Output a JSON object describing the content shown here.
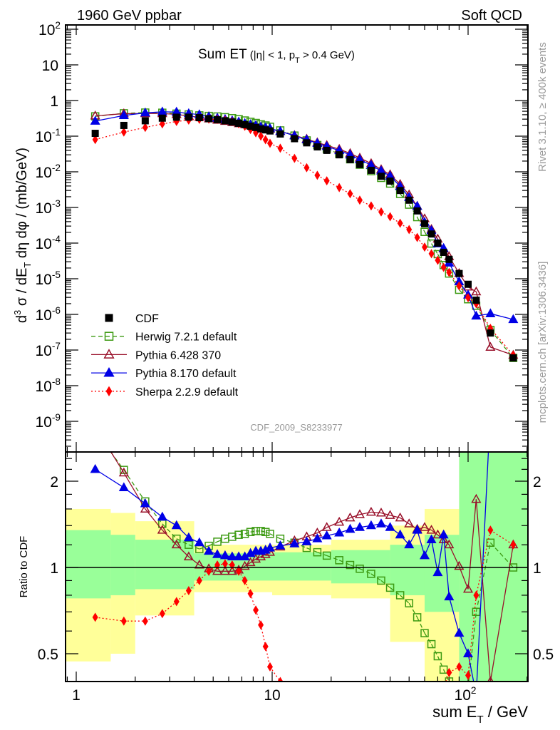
{
  "header": {
    "left": "1960 GeV ppbar",
    "right": "Soft QCD"
  },
  "side": {
    "rivet": "Rivet 3.1.10, ≥ 400k events",
    "mcplots": "mcplots.cern.ch [arXiv:1306.3436]"
  },
  "analysis_id": "CDF_2009_S8233977",
  "chart_data": [
    {
      "type": "scatter",
      "panel": "main",
      "title_parts": [
        "Sum ET",
        " (|η| < 1, p",
        "T",
        " > 0.4 GeV)"
      ],
      "ylabel_parts": [
        "d",
        "3",
        " σ / dE",
        "T",
        " dη dφ / (mb/GeV)"
      ],
      "yscale": "log",
      "ylim": [
        1.3e-10,
        130
      ],
      "ytick_labels": [
        {
          "v": 100,
          "base": "10",
          "exp": "2"
        },
        {
          "v": 10,
          "base": "10",
          "exp": ""
        },
        {
          "v": 1,
          "base": "1",
          "exp": ""
        },
        {
          "v": 0.1,
          "base": "10",
          "exp": "-1"
        },
        {
          "v": 0.01,
          "base": "10",
          "exp": "-2"
        },
        {
          "v": 0.001,
          "base": "10",
          "exp": "-3"
        },
        {
          "v": 0.0001,
          "base": "10",
          "exp": "-4"
        },
        {
          "v": 1e-05,
          "base": "10",
          "exp": "-5"
        },
        {
          "v": 1e-06,
          "base": "10",
          "exp": "-6"
        },
        {
          "v": 1e-07,
          "base": "10",
          "exp": "-7"
        },
        {
          "v": 1e-08,
          "base": "10",
          "exp": "-8"
        },
        {
          "v": 1e-09,
          "base": "10",
          "exp": "-9"
        }
      ],
      "legend_position": "lower-left",
      "note": "MC values = CDF value x ratio"
    },
    {
      "type": "scatter",
      "panel": "ratio",
      "ylabel": "Ratio to CDF",
      "yscale": "log",
      "ylim": [
        0.4,
        2.53
      ],
      "ytick_labels": [
        {
          "v": 0.5,
          "label": "0.5"
        },
        {
          "v": 1,
          "label": "1"
        },
        {
          "v": 2,
          "label": "2"
        }
      ],
      "xlabel_parts": [
        "sum E",
        "T",
        " / GeV"
      ],
      "xscale": "log",
      "xlim": [
        0.88,
        202
      ],
      "xtick_labels": [
        {
          "v": 1,
          "base": "1",
          "exp": ""
        },
        {
          "v": 10,
          "base": "10",
          "exp": ""
        },
        {
          "v": 100,
          "base": "10",
          "exp": "2"
        }
      ],
      "bands": {
        "yellow": [
          [
            0.88,
            1.5,
            0.47,
            1.6
          ],
          [
            1.5,
            2,
            0.5,
            1.55
          ],
          [
            2,
            4,
            0.68,
            1.45
          ],
          [
            4,
            10,
            0.82,
            1.2
          ],
          [
            10,
            20,
            0.8,
            1.2
          ],
          [
            20,
            40,
            0.78,
            1.25
          ],
          [
            40,
            60,
            0.55,
            1.4
          ],
          [
            60,
            90,
            0.4,
            1.6
          ],
          [
            90,
            202,
            0.4,
            2.53
          ]
        ],
        "green": [
          [
            0.88,
            1.5,
            0.78,
            1.35
          ],
          [
            1.5,
            2,
            0.8,
            1.3
          ],
          [
            2,
            4,
            0.84,
            1.25
          ],
          [
            4,
            10,
            0.9,
            1.12
          ],
          [
            10,
            20,
            0.9,
            1.13
          ],
          [
            20,
            40,
            0.88,
            1.15
          ],
          [
            40,
            60,
            0.8,
            1.2
          ],
          [
            60,
            90,
            0.7,
            1.3
          ],
          [
            90,
            202,
            0.4,
            2.53
          ]
        ]
      },
      "band_colors": {
        "yellow": "#ffff99",
        "green": "#99ff99"
      }
    }
  ],
  "series_data": {
    "x": [
      1.25,
      1.75,
      2.25,
      2.75,
      3.25,
      3.75,
      4.25,
      4.75,
      5.25,
      5.75,
      6.25,
      6.75,
      7.25,
      7.75,
      8.25,
      8.75,
      9.25,
      9.75,
      11,
      13,
      15,
      17,
      19,
      22,
      25,
      28,
      32,
      36,
      40,
      45,
      50,
      55,
      60,
      65,
      70,
      75,
      80,
      90,
      100,
      110,
      130,
      170
    ],
    "cdf": [
      0.12,
      0.2,
      0.27,
      0.32,
      0.34,
      0.34,
      0.33,
      0.31,
      0.29,
      0.27,
      0.25,
      0.23,
      0.21,
      0.19,
      0.175,
      0.16,
      0.15,
      0.14,
      0.115,
      0.085,
      0.065,
      0.05,
      0.04,
      0.03,
      0.022,
      0.016,
      0.011,
      0.0075,
      0.0055,
      0.003,
      0.0016,
      0.0008,
      0.00035,
      0.00018,
      0.0001,
      5.5e-05,
      3.5e-05,
      1.4e-05,
      7e-06,
      2.5e-06,
      3e-07,
      6e-08
    ],
    "series": [
      {
        "name": "CDF",
        "color": "#000000",
        "marker": "square-filled",
        "line": "none",
        "ratio": null
      },
      {
        "name": "Herwig 7.2.1 default",
        "color": "#3c9a12",
        "marker": "square-open",
        "line": "dashed",
        "ratio": [
          3.0,
          2.19,
          1.7,
          1.42,
          1.26,
          1.2,
          1.16,
          1.19,
          1.23,
          1.26,
          1.28,
          1.3,
          1.31,
          1.33,
          1.34,
          1.34,
          1.33,
          1.31,
          1.26,
          1.22,
          1.17,
          1.13,
          1.1,
          1.06,
          1.02,
          0.99,
          0.95,
          0.9,
          0.85,
          0.8,
          0.75,
          0.67,
          0.59,
          0.54,
          0.49,
          0.44,
          0.4,
          0.35,
          0.38,
          0.7,
          1.22,
          1.0
        ]
      },
      {
        "name": "Pythia 6.428 370",
        "color": "#99102a",
        "marker": "triangle-open",
        "line": "solid",
        "ratio": [
          3.1,
          2.14,
          1.6,
          1.35,
          1.2,
          1.09,
          1.02,
          0.99,
          0.97,
          0.97,
          0.97,
          0.98,
          1.01,
          1.04,
          1.07,
          1.09,
          1.11,
          1.13,
          1.18,
          1.24,
          1.28,
          1.32,
          1.38,
          1.44,
          1.49,
          1.53,
          1.56,
          1.55,
          1.52,
          1.49,
          1.42,
          1.36,
          1.38,
          1.35,
          1.3,
          1.25,
          1.2,
          1.01,
          0.84,
          1.73,
          0.4,
          1.2
        ]
      },
      {
        "name": "Pythia 8.170 default",
        "color": "#0000e6",
        "marker": "triangle-filled",
        "line": "solid",
        "ratio": [
          2.2,
          1.9,
          1.67,
          1.5,
          1.4,
          1.27,
          1.22,
          1.14,
          1.11,
          1.1,
          1.09,
          1.09,
          1.09,
          1.12,
          1.14,
          1.14,
          1.15,
          1.17,
          1.19,
          1.21,
          1.23,
          1.26,
          1.29,
          1.32,
          1.36,
          1.38,
          1.4,
          1.42,
          1.38,
          1.3,
          1.2,
          1.35,
          1.1,
          1.25,
          0.96,
          1.3,
          0.79,
          0.59,
          0.5,
          0.36,
          3.5,
          12
        ]
      },
      {
        "name": "Sherpa 2.2.9 default",
        "color": "#ff0000",
        "marker": "diamond-filled",
        "line": "dotted",
        "ratio": [
          0.67,
          0.65,
          0.65,
          0.69,
          0.76,
          0.83,
          0.9,
          0.97,
          1.02,
          1.03,
          1.02,
          0.97,
          0.9,
          0.81,
          0.71,
          0.63,
          0.53,
          0.45,
          0.4,
          0.28,
          0.2,
          0.16,
          0.14,
          0.12,
          0.11,
          0.1,
          0.1,
          0.1,
          0.1,
          0.12,
          0.15,
          0.18,
          0.22,
          0.28,
          0.33,
          0.38,
          0.43,
          0.45,
          0.42,
          0.8,
          1.35,
          1.2
        ]
      }
    ]
  }
}
